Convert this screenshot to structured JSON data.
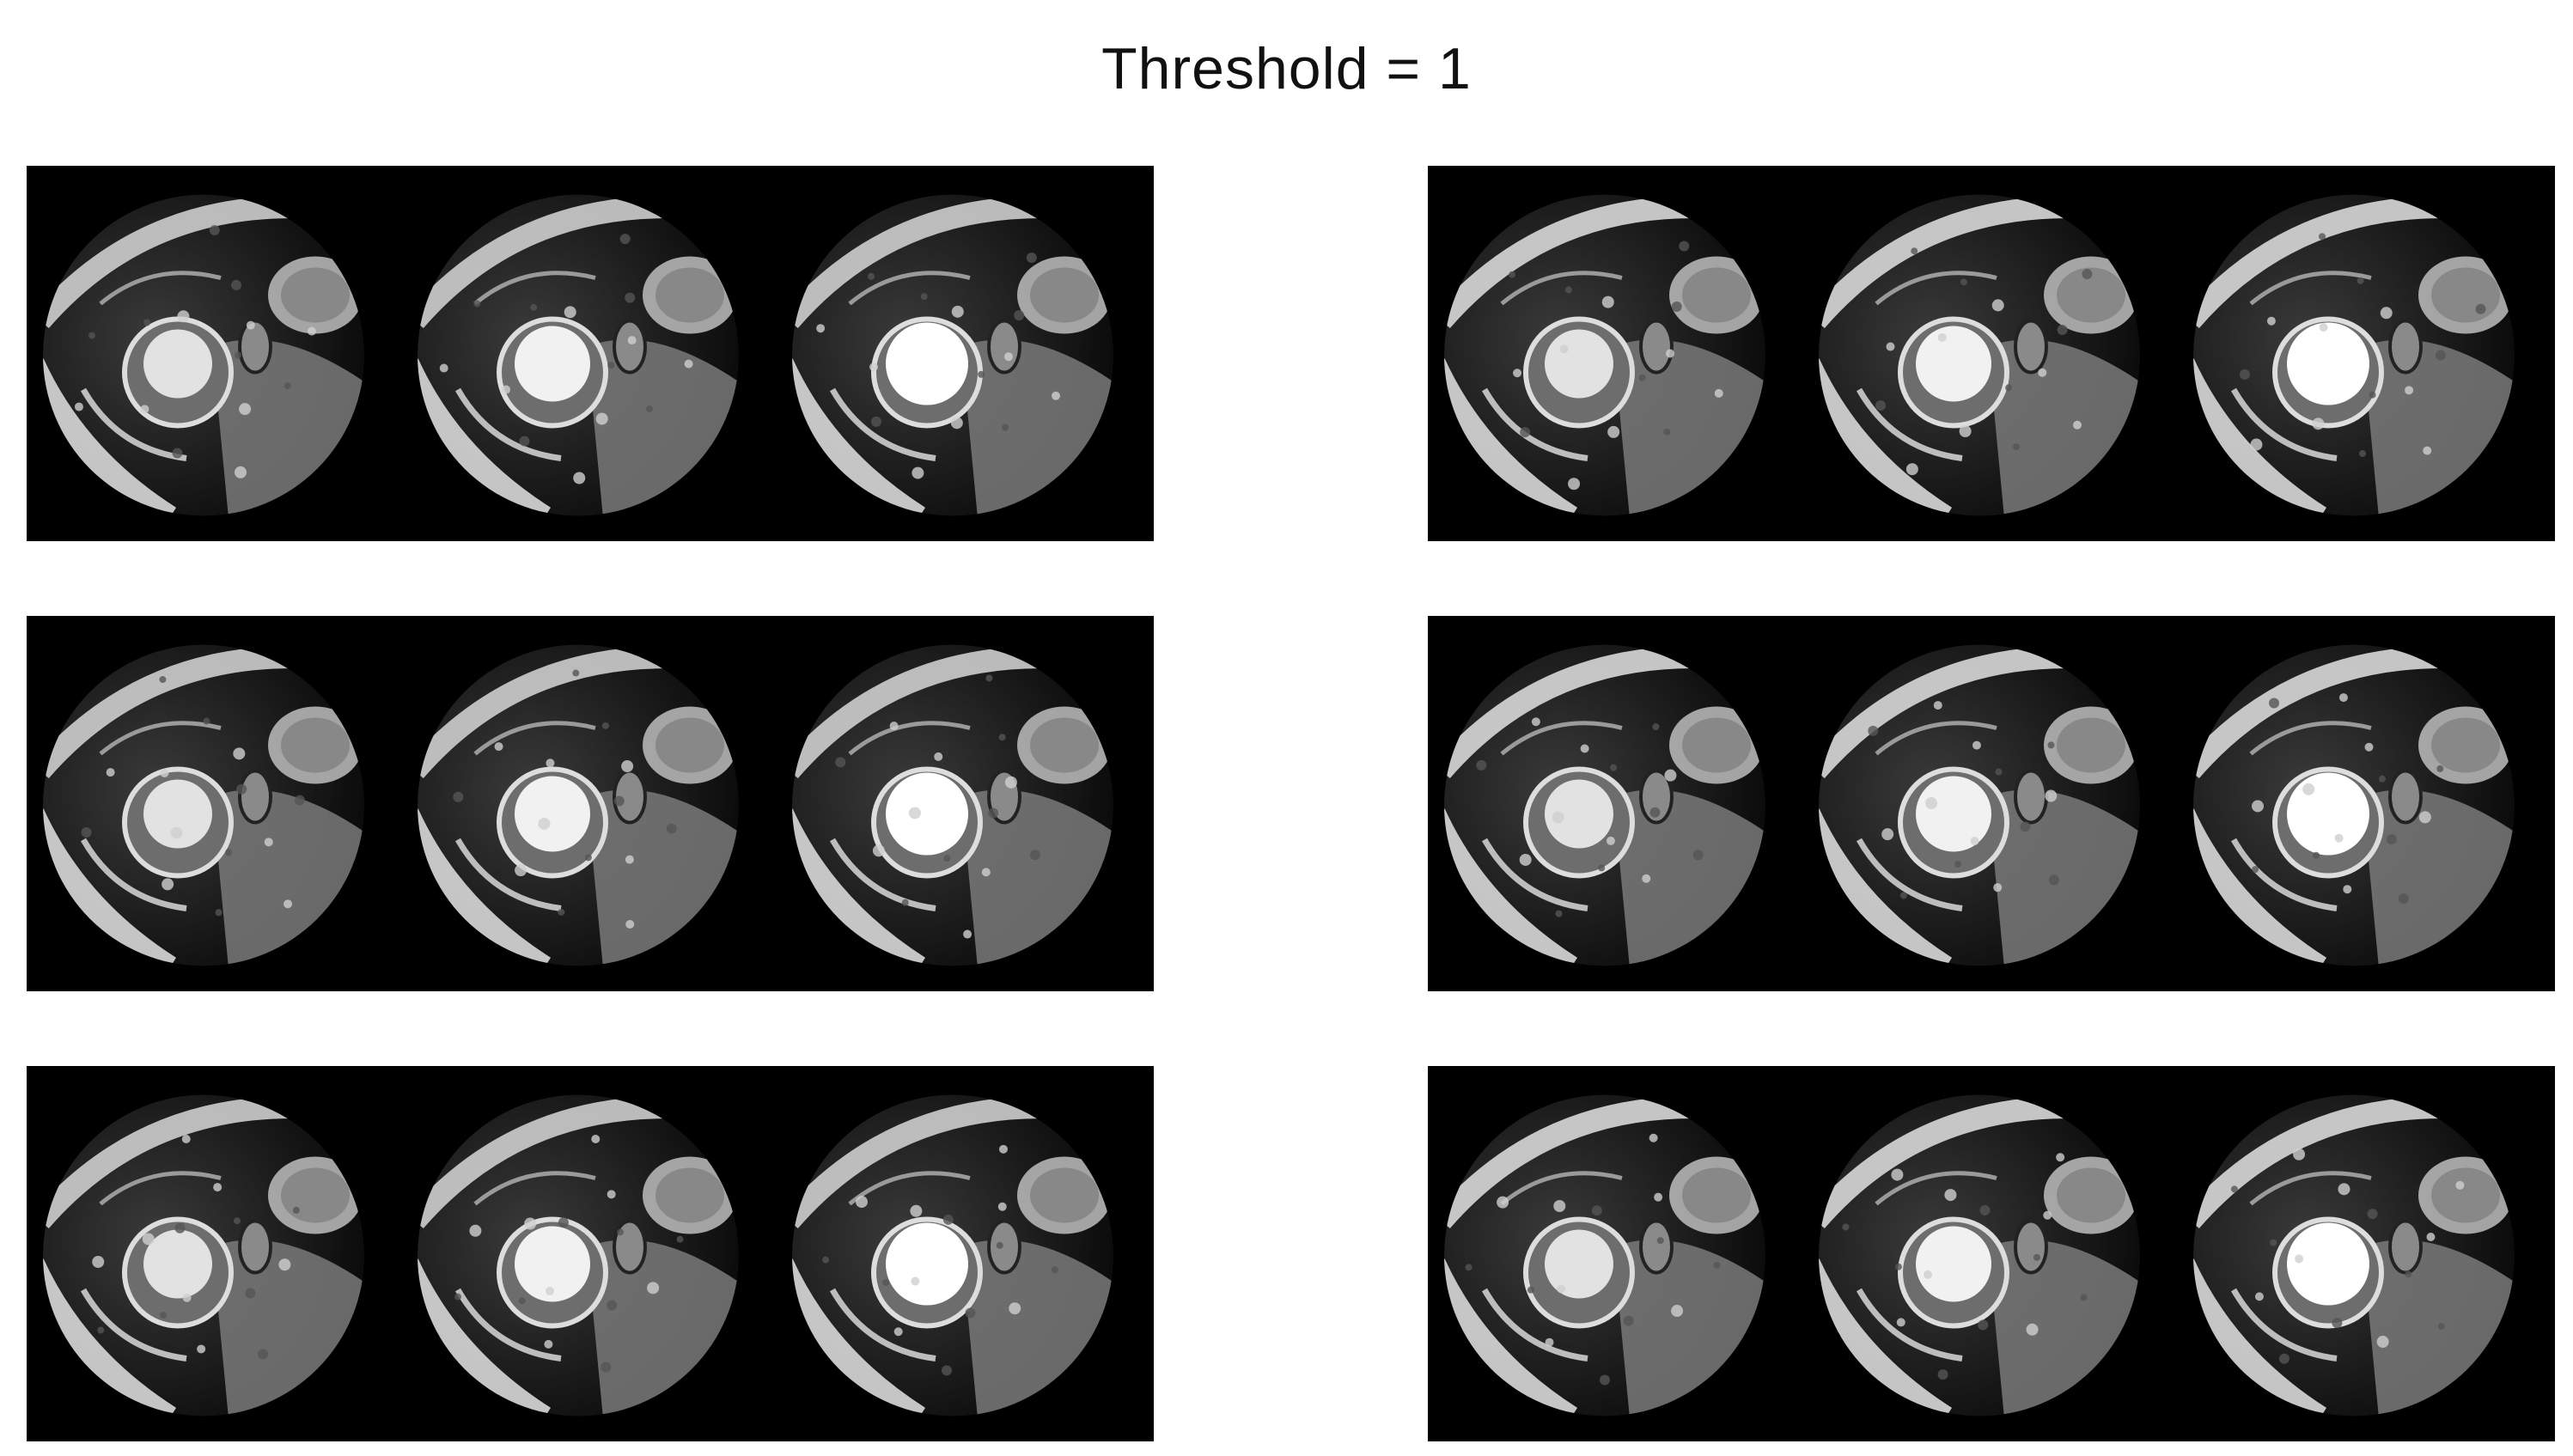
{
  "figure": {
    "title": "Threshold = 1"
  },
  "panels": [
    {
      "id": "panel-1",
      "row": 1,
      "column": "left",
      "slices": 3
    },
    {
      "id": "panel-2",
      "row": 1,
      "column": "right",
      "slices": 3
    },
    {
      "id": "panel-3",
      "row": 2,
      "column": "left",
      "slices": 3
    },
    {
      "id": "panel-4",
      "row": 2,
      "column": "right",
      "slices": 3
    },
    {
      "id": "panel-5",
      "row": 3,
      "column": "left",
      "slices": 3
    },
    {
      "id": "panel-6",
      "row": 3,
      "column": "right",
      "slices": 3
    }
  ],
  "colors": {
    "background": "#ffffff",
    "panel": "#000000",
    "tissue_dark": "#1a1a1a",
    "tissue_mid": "#7a7a7a",
    "tissue_light": "#d8d8d8",
    "blood_pool": "#ffffff"
  }
}
